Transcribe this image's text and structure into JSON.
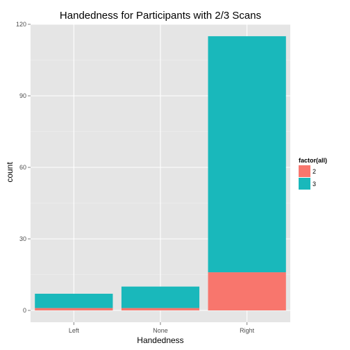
{
  "chart_data": {
    "type": "bar",
    "stacked": true,
    "title": "Handedness for Participants with 2/3 Scans",
    "xlabel": "Handedness",
    "ylabel": "count",
    "categories": [
      "Left",
      "None",
      "Right"
    ],
    "series": [
      {
        "name": "2",
        "values": [
          1,
          1,
          16
        ],
        "color": "#F8766D"
      },
      {
        "name": "3",
        "values": [
          6,
          9,
          99
        ],
        "color": "#19B8BB"
      }
    ],
    "ylim": [
      0,
      120
    ],
    "yticks": [
      0,
      30,
      60,
      90,
      120
    ],
    "grid": true,
    "legend": {
      "title": "factor(all)",
      "placement": "right"
    },
    "panel_color": "#E5E5E5",
    "grid_color": "#FFFFFF"
  }
}
